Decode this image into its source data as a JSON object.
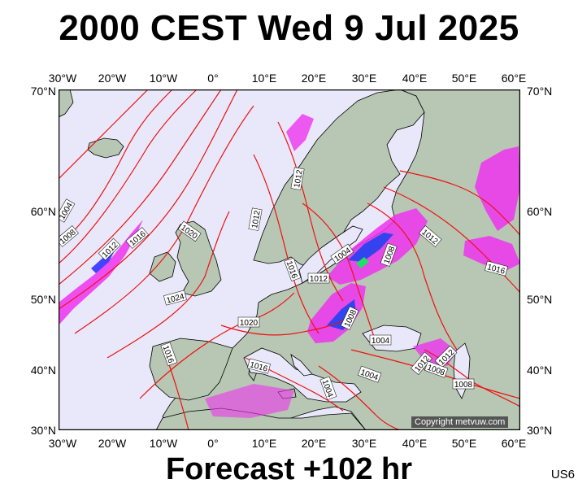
{
  "title": "2000 CEST Wed 9 Jul 2025",
  "footer": "Forecast +102 hr",
  "model": "US6",
  "copyright": "Copyright metvuw.com",
  "lon_labels": [
    "30°W",
    "20°W",
    "10°W",
    "0°",
    "10°E",
    "20°E",
    "30°E",
    "40°E",
    "50°E",
    "60°E"
  ],
  "lat_labels": [
    "70°N",
    "60°N",
    "50°N",
    "40°N",
    "30°N"
  ],
  "isobar_labels": [
    "1004",
    "1008",
    "1012",
    "1016",
    "1020",
    "1024",
    "1012",
    "1012",
    "1016",
    "1012",
    "1004",
    "1008",
    "1012",
    "1012",
    "1016",
    "1020",
    "1008",
    "1004",
    "1016",
    "1016",
    "1004",
    "1004",
    "1012",
    "1008",
    "1008"
  ],
  "colors": {
    "sea": "#e8e8fa",
    "land": "#b7c7b3",
    "isobar": "#ee1111",
    "precip": "#ee33ee",
    "coast": "#000000"
  }
}
